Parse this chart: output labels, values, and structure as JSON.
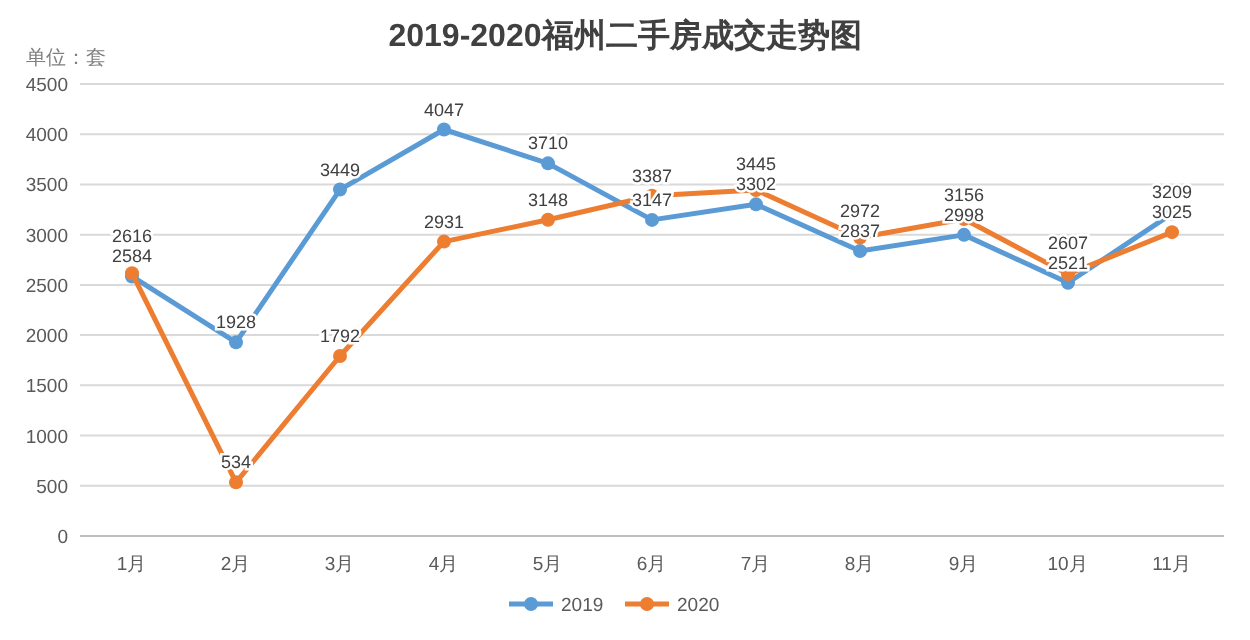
{
  "chart_data": {
    "type": "line",
    "title": "2019-2020福州二手房成交走势图",
    "annotations": [
      "单位：套"
    ],
    "categories": [
      "1月",
      "2月",
      "3月",
      "4月",
      "5月",
      "6月",
      "7月",
      "8月",
      "9月",
      "10月",
      "11月"
    ],
    "series": [
      {
        "name": "2019",
        "color": "#5b9bd5",
        "values": [
          2584,
          1928,
          3449,
          4047,
          3710,
          3147,
          3302,
          2837,
          2998,
          2521,
          3209
        ]
      },
      {
        "name": "2020",
        "color": "#ed7d31",
        "values": [
          2616,
          534,
          1792,
          2931,
          3148,
          3387,
          3445,
          2972,
          3156,
          2607,
          3025
        ]
      }
    ],
    "ylim": [
      0,
      4500
    ],
    "yticks": [
      0,
      500,
      1000,
      1500,
      2000,
      2500,
      3000,
      3500,
      4000,
      4500
    ],
    "grid": "y",
    "legend": "bottom",
    "marker": "circle",
    "line_style": "solid",
    "data_labels": true
  }
}
